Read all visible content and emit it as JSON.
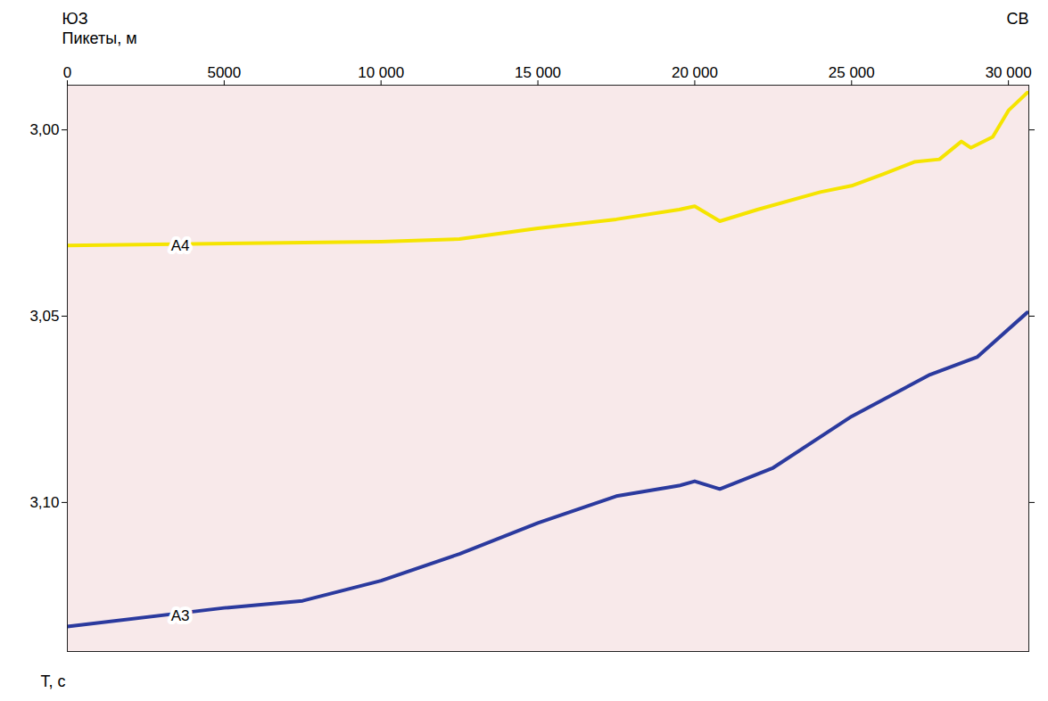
{
  "chart_data": {
    "type": "line",
    "x_label": "Пикеты, м",
    "y_label": "T, с",
    "annotations": [
      {
        "text": "ЮЗ",
        "position": "top-left"
      },
      {
        "text": "СВ",
        "position": "top-right"
      }
    ],
    "xlim": [
      0,
      30650
    ],
    "ylim": [
      2.988,
      3.14
    ],
    "xticks": [
      0,
      5000,
      {
        "value": 10000,
        "label": "10 000"
      },
      {
        "value": 15000,
        "label": "15 000"
      },
      {
        "value": 20000,
        "label": "20 000"
      },
      {
        "value": 25000,
        "label": "25 000"
      },
      {
        "value": 30000,
        "label": "30 000"
      }
    ],
    "yticks": [
      {
        "value": 3.0,
        "label": "3,00"
      },
      {
        "value": 3.05,
        "label": "3,05"
      },
      {
        "value": 3.1,
        "label": "3,10"
      }
    ],
    "grid": false,
    "series": [
      {
        "name": "A4",
        "color": "#f5e400",
        "x": [
          0,
          10000,
          12500,
          15000,
          17500,
          19500,
          20000,
          20800,
          22000,
          24000,
          25000,
          26000,
          27000,
          27800,
          28500,
          28800,
          29500,
          30000,
          30600
        ],
        "values": [
          3.031,
          3.03,
          3.0293,
          3.0264,
          3.024,
          3.0214,
          3.0205,
          3.0245,
          3.0214,
          3.0167,
          3.015,
          3.0119,
          3.0086,
          3.0079,
          3.0031,
          3.0048,
          3.0019,
          2.9948,
          2.99
        ],
        "label_x": 3600,
        "label_y": 3.031
      },
      {
        "name": "A3",
        "color": "#2b3a9e",
        "x": [
          0,
          5000,
          7500,
          10000,
          12500,
          15000,
          17500,
          19500,
          20000,
          20800,
          22500,
          25000,
          27500,
          29000,
          30600
        ],
        "values": [
          3.1333,
          3.1283,
          3.1264,
          3.121,
          3.1138,
          3.1055,
          3.0983,
          3.0955,
          3.0943,
          3.0964,
          3.0907,
          3.0769,
          3.0657,
          3.061,
          3.049
        ],
        "label_x": 3600,
        "label_y": 3.1305
      }
    ]
  }
}
